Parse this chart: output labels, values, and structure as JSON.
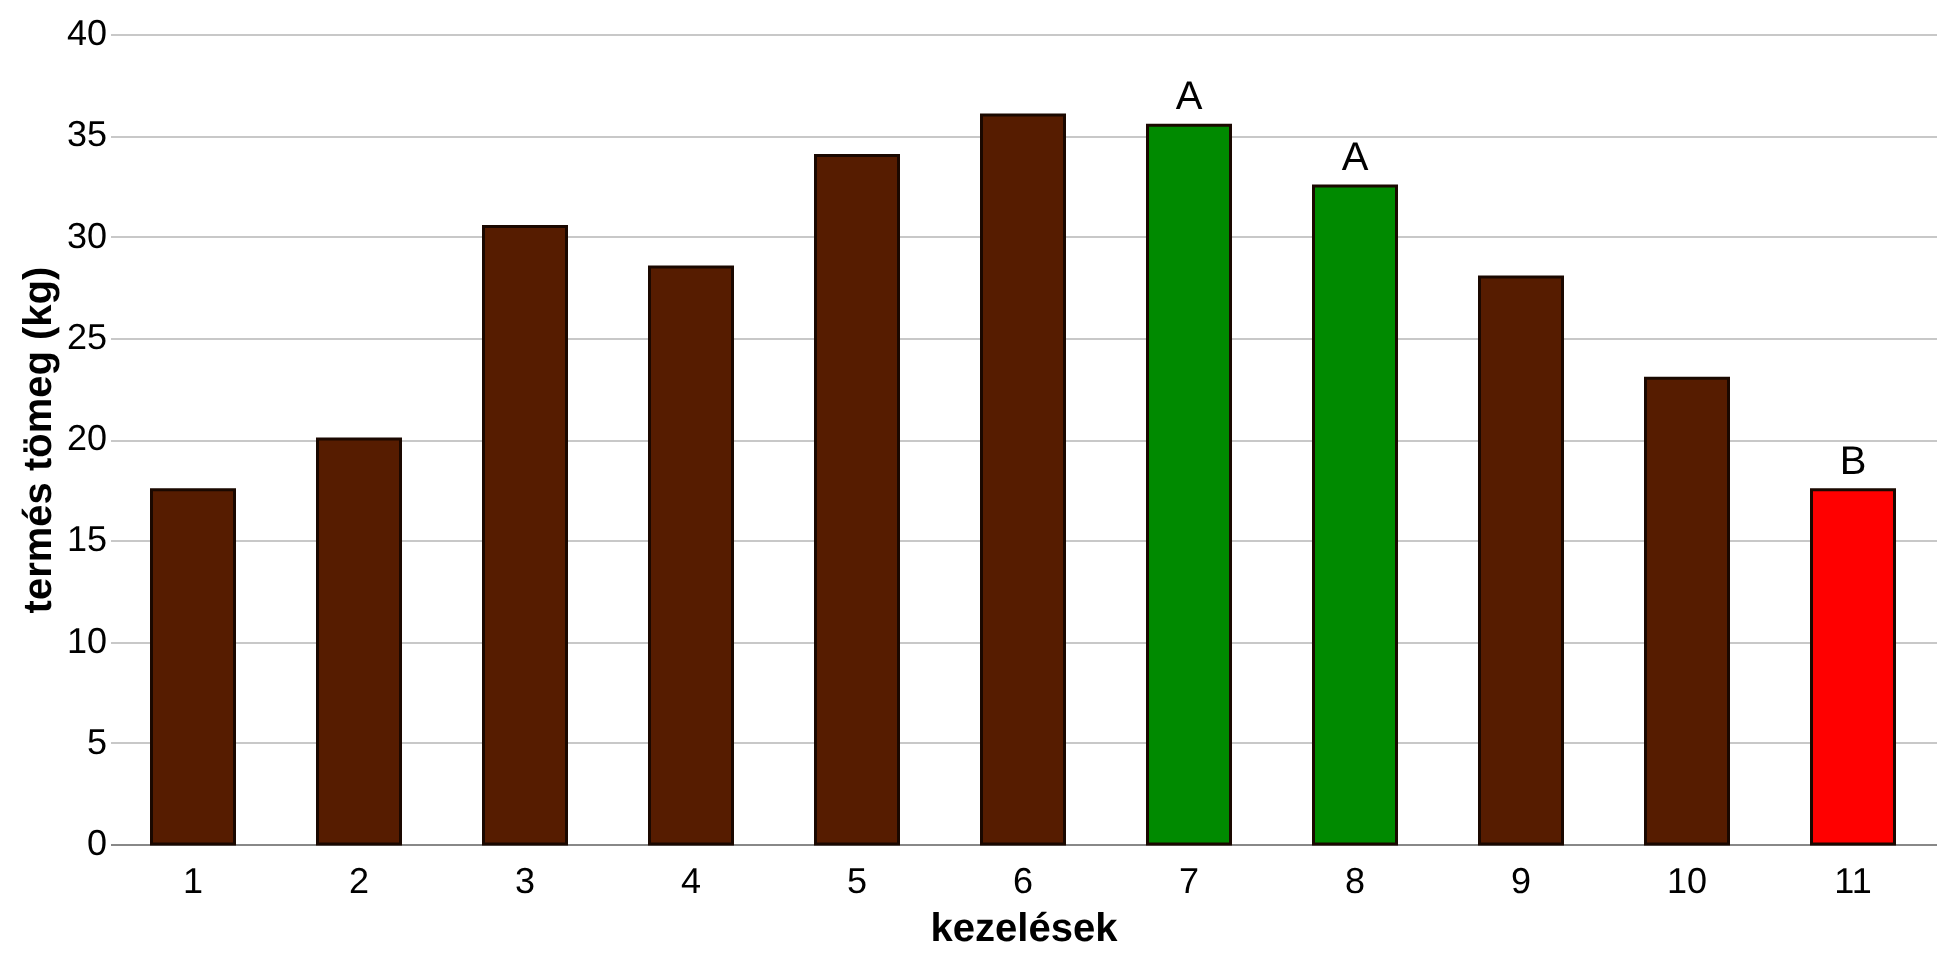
{
  "chart_data": {
    "type": "bar",
    "xlabel": "kezelések",
    "ylabel": "termés tömeg (kg)",
    "categories": [
      "1",
      "2",
      "3",
      "4",
      "5",
      "6",
      "7",
      "8",
      "9",
      "10",
      "11"
    ],
    "values": [
      17.5,
      20,
      30.5,
      28.5,
      34,
      36,
      35.5,
      32.5,
      28,
      23,
      17.5
    ],
    "colors": [
      "#561c00",
      "#561c00",
      "#561c00",
      "#561c00",
      "#561c00",
      "#561c00",
      "#008a00",
      "#008a00",
      "#561c00",
      "#561c00",
      "#ff0000"
    ],
    "ylim": [
      0,
      40
    ],
    "yticks": [
      0,
      5,
      10,
      15,
      20,
      25,
      30,
      35,
      40
    ],
    "grid": "y",
    "annotations": [
      {
        "text": "A",
        "x": "7",
        "y": 35.5
      },
      {
        "text": "A",
        "x": "8",
        "y": 32.5
      },
      {
        "text": "B",
        "x": "11",
        "y": 17.5
      }
    ]
  }
}
